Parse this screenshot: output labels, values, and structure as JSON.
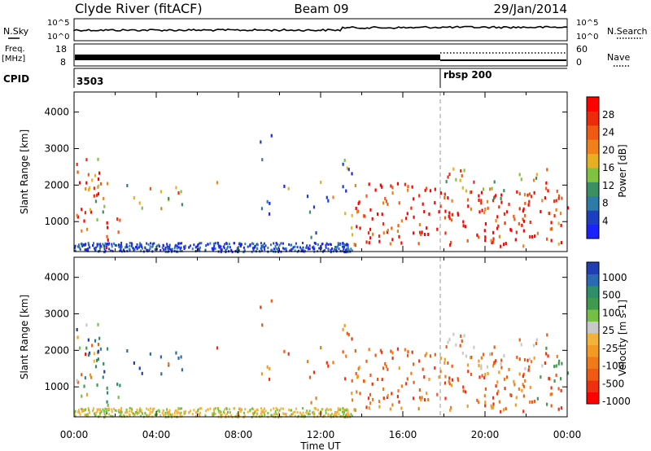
{
  "header": {
    "left_title": "Clyde River (fitACF)",
    "center_title": "Beam 09",
    "right_title": "29/Jan/2014"
  },
  "status_panels": {
    "nsky": {
      "label": "N.Sky",
      "right_label": "N.Search",
      "y_ticks_left": [
        "10^5",
        "10^0"
      ],
      "y_ticks_right": [
        "10^5",
        "10^0"
      ]
    },
    "freq": {
      "label_line1": "Freq.",
      "label_line2": "[MHz]",
      "y_ticks_left": [
        "18",
        "8"
      ],
      "right_label": "Nave",
      "y_ticks_right": [
        "60",
        "0"
      ]
    },
    "cpid": {
      "label": "CPID",
      "segments": [
        {
          "start_hour": 0,
          "label": "3503"
        },
        {
          "start_hour": 18.0,
          "label": "rbsp 200"
        }
      ]
    }
  },
  "chart_data": [
    {
      "type": "heatmap",
      "title": "",
      "ylabel": "Slant Range [km]",
      "xlim_hours": [
        0,
        24
      ],
      "ylim_km": [
        180,
        4550
      ],
      "y_ticks": [
        1000,
        2000,
        3000,
        4000
      ],
      "colorbar": {
        "label": "Power [dB]",
        "ticks": [
          4,
          8,
          12,
          16,
          20,
          24,
          28
        ],
        "colors": [
          "#1a22ff",
          "#1c3fc1",
          "#2e7aa8",
          "#3b8f62",
          "#7fc241",
          "#e6b022",
          "#f08019",
          "#f05a12",
          "#ee2a0c",
          "#ff0000"
        ]
      }
    },
    {
      "type": "heatmap",
      "title": "",
      "ylabel": "Slant Range [km]",
      "xlabel": "Time UT",
      "xlim_hours": [
        0,
        24
      ],
      "ylim_km": [
        180,
        4550
      ],
      "y_ticks": [
        1000,
        2000,
        3000,
        4000
      ],
      "x_ticks": [
        "00:00",
        "04:00",
        "08:00",
        "12:00",
        "16:00",
        "20:00",
        "00:00"
      ],
      "colorbar": {
        "label": "Velocity [m s-1]",
        "ticks": [
          "1000",
          "500",
          "100",
          "25",
          "-25",
          "-100",
          "-500",
          "-1000"
        ],
        "colors": [
          "#1f3fb3",
          "#2a6ab0",
          "#2f8f6b",
          "#3f9a50",
          "#75c044",
          "#c8c8c8",
          "#f2b33a",
          "#f39a22",
          "#f07a18",
          "#ef5a14",
          "#ee3010",
          "#ff0000"
        ]
      }
    }
  ]
}
